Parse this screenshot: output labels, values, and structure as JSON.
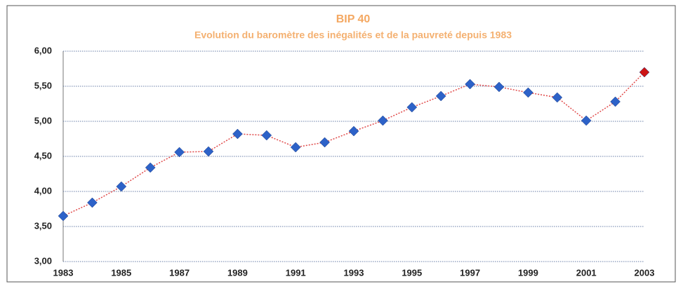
{
  "chart_data": {
    "type": "line",
    "title": "BIP 40",
    "subtitle": "Evolution du baromètre des inégalités et de la pauvreté depuis 1983",
    "categories": [
      "1983",
      null,
      "1985",
      null,
      "1987",
      null,
      "1989",
      null,
      "1991",
      null,
      "1993",
      null,
      "1995",
      null,
      "1997",
      null,
      "1999",
      null,
      "2001",
      null,
      "2003"
    ],
    "values": [
      3.65,
      3.84,
      4.07,
      4.34,
      4.56,
      4.57,
      4.82,
      4.8,
      4.63,
      4.7,
      4.86,
      5.01,
      5.2,
      5.36,
      5.53,
      5.49,
      5.41,
      5.34,
      5.01,
      5.28,
      5.7
    ],
    "line_color": "#e04848",
    "marker_color": "#2d62c8",
    "last_marker_color": "#cc1414",
    "ylim": [
      3,
      6
    ],
    "yticks": [
      {
        "value": 3,
        "label": "3,00"
      },
      {
        "value": 3.5,
        "label": "3,50"
      },
      {
        "value": 4,
        "label": "4,00"
      },
      {
        "value": 4.5,
        "label": "4,50"
      },
      {
        "value": 5,
        "label": "5,00"
      },
      {
        "value": 5.5,
        "label": "5,50"
      },
      {
        "value": 6,
        "label": "6,00"
      }
    ],
    "grid": true
  }
}
